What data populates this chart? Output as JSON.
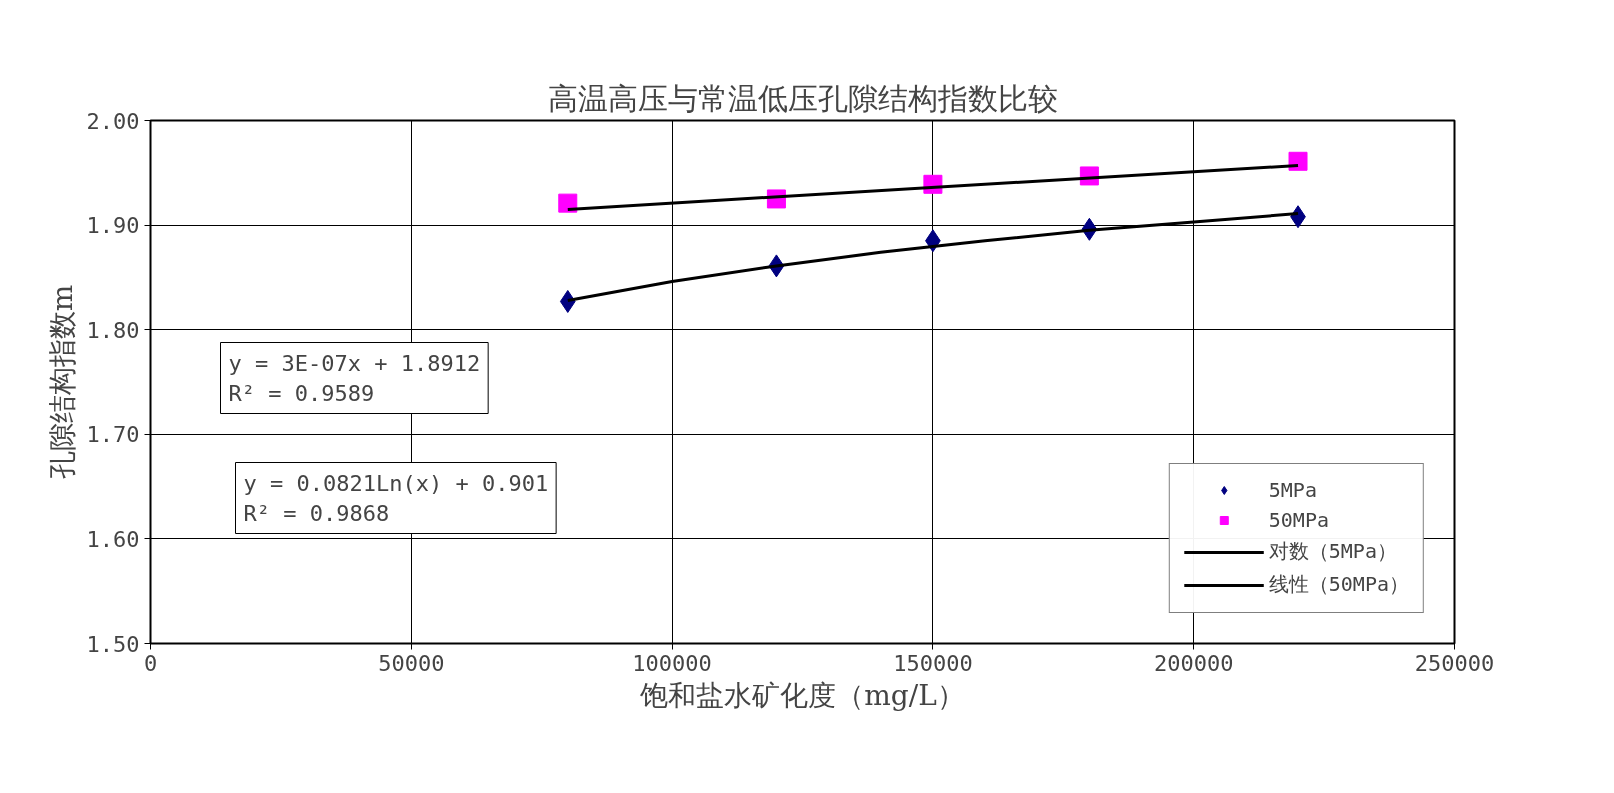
{
  "chart_data": {
    "type": "scatter",
    "title": "高温高压与常温低压孔隙结构指数比较",
    "xlabel": "饱和盐水矿化度（mg/L）",
    "ylabel": "孔隙结构指数m",
    "xlim": [
      0,
      250000
    ],
    "xticks": [
      0,
      50000,
      100000,
      150000,
      200000,
      250000
    ],
    "ylim": [
      1.5,
      2.0
    ],
    "yticks": [
      {
        "value": 1.5,
        "label": "1.50"
      },
      {
        "value": 1.6,
        "label": "1.60"
      },
      {
        "value": 1.7,
        "label": "1.70"
      },
      {
        "value": 1.8,
        "label": "1.80"
      },
      {
        "value": 1.9,
        "label": "1.90"
      },
      {
        "value": 2.0,
        "label": "2.00"
      }
    ],
    "grid": true,
    "legend": "bottom right",
    "series": [
      {
        "name": "5MPa",
        "marker": "diamond",
        "color": "#000080",
        "x": [
          80000,
          120000,
          150000,
          180000,
          220000
        ],
        "values": [
          1.827,
          1.861,
          1.885,
          1.896,
          1.908
        ]
      },
      {
        "name": "50MPa",
        "marker": "square",
        "color": "#ff00ff",
        "x": [
          80000,
          120000,
          150000,
          180000,
          220000
        ],
        "values": [
          1.921,
          1.925,
          1.939,
          1.947,
          1.961
        ]
      },
      {
        "name": "对数（5MPa）",
        "type": "line",
        "color": "#000000",
        "x": [
          80000,
          100000,
          120000,
          140000,
          160000,
          180000,
          200000,
          220000
        ],
        "values": [
          1.828,
          1.846,
          1.861,
          1.874,
          1.885,
          1.895,
          1.903,
          1.911
        ]
      },
      {
        "name": "线性（50MPa）",
        "type": "line",
        "color": "#000000",
        "x": [
          80000,
          220000
        ],
        "values": [
          1.915,
          1.957
        ]
      }
    ],
    "annotations": [
      "y = 3E-07x + 1.8912\nR² = 0.9589",
      "y = 0.0821Ln(x) + 0.901\nR² = 0.9868"
    ]
  }
}
